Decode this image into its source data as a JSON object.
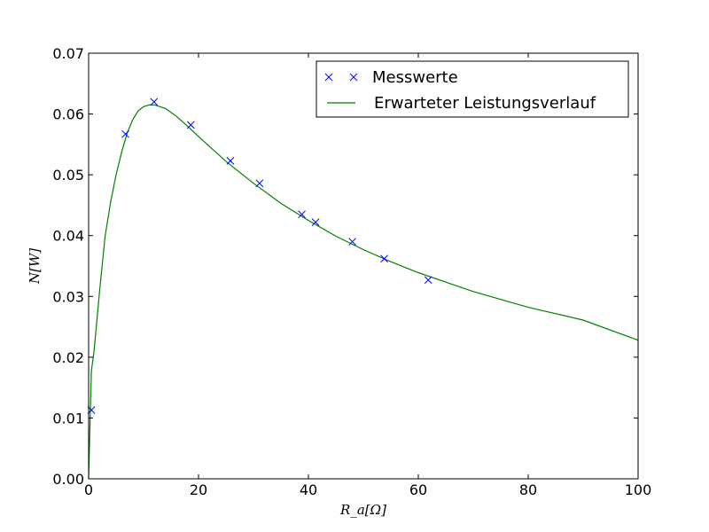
{
  "chart_data": {
    "type": "line",
    "title": "",
    "xlabel": "R_a[Ω]",
    "ylabel": "N[W]",
    "xlim": [
      0,
      100
    ],
    "ylim": [
      0,
      0.07
    ],
    "x_ticks": [
      0,
      20,
      40,
      60,
      80,
      100
    ],
    "y_ticks": [
      0.0,
      0.01,
      0.02,
      0.03,
      0.04,
      0.05,
      0.06,
      0.07
    ],
    "y_tick_labels": [
      "0.00",
      "0.01",
      "0.02",
      "0.03",
      "0.04",
      "0.05",
      "0.06",
      "0.07"
    ],
    "grid": false,
    "legend_position": "top-right",
    "series": [
      {
        "name": "Messwerte",
        "kind": "marker",
        "marker": "x",
        "color": "#0000ff",
        "x": [
          0.5,
          6.7,
          11.9,
          18.6,
          25.8,
          31.1,
          38.8,
          41.3,
          48.0,
          53.8,
          61.8
        ],
        "y": [
          0.0113,
          0.0567,
          0.062,
          0.0582,
          0.0523,
          0.0486,
          0.0435,
          0.0422,
          0.039,
          0.0362,
          0.0327
        ]
      },
      {
        "name": "Erwarteter Leistungsverlauf",
        "kind": "line",
        "color": "#008000",
        "x": [
          0,
          0.5,
          1,
          2,
          3,
          4,
          5,
          6,
          7,
          8,
          9,
          10,
          11,
          12,
          14,
          16,
          18,
          20,
          25,
          30,
          35,
          40,
          45,
          50,
          55,
          60,
          70,
          80,
          90,
          100
        ],
        "y": [
          0,
          0.0177,
          0.0211,
          0.0309,
          0.0399,
          0.0455,
          0.05,
          0.0537,
          0.0568,
          0.059,
          0.0605,
          0.0612,
          0.0615,
          0.0615,
          0.0609,
          0.0596,
          0.058,
          0.0563,
          0.0522,
          0.0486,
          0.0453,
          0.0425,
          0.0399,
          0.0377,
          0.0357,
          0.0339,
          0.0308,
          0.0282,
          0.0261,
          0.0228
        ]
      }
    ]
  }
}
